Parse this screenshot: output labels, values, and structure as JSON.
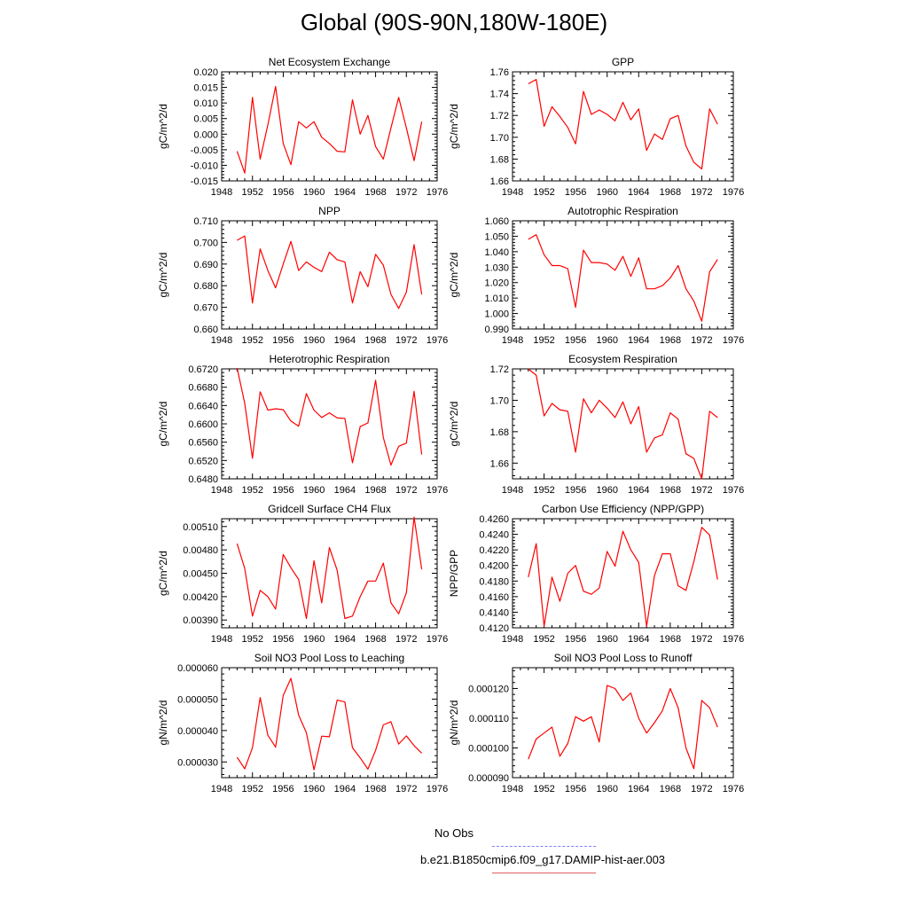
{
  "page": {
    "title": "Global (90S-90N,180W-180E)"
  },
  "legend": {
    "entries": [
      {
        "label": "No Obs",
        "color": "#7f7fff",
        "style": "dashed"
      },
      {
        "label": "b.e21.B1850cmip6.f09_g17.DAMIP-hist-aer.003",
        "color": "#e06060",
        "style": "solid"
      }
    ]
  },
  "chart_data": [
    {
      "type": "line",
      "title": "Net Ecosystem Exchange",
      "ylabel": "gC/m^2/d",
      "xlim": [
        1948,
        1976
      ],
      "ylim": [
        -0.015,
        0.02
      ],
      "xticks": [
        1948,
        1952,
        1956,
        1960,
        1964,
        1968,
        1972,
        1976
      ],
      "yticks": [
        -0.015,
        -0.01,
        -0.005,
        0.0,
        0.005,
        0.01,
        0.015,
        0.02
      ],
      "ytick_labels": [
        "-0.015",
        "-0.010",
        "-0.005",
        "0.000",
        "0.005",
        "0.010",
        "0.015",
        "0.020"
      ],
      "series": [
        {
          "color": "#ff0000",
          "x": [
            1950,
            1951,
            1952,
            1953,
            1954,
            1955,
            1956,
            1957,
            1958,
            1959,
            1960,
            1961,
            1962,
            1963,
            1964,
            1965,
            1966,
            1967,
            1968,
            1969,
            1970,
            1971,
            1972,
            1973,
            1974
          ],
          "y": [
            -0.0055,
            -0.0125,
            0.0118,
            -0.008,
            0.003,
            0.0153,
            -0.003,
            -0.0098,
            0.004,
            0.002,
            0.004,
            -0.001,
            -0.003,
            -0.0055,
            -0.0057,
            0.011,
            0.0,
            0.006,
            -0.004,
            -0.008,
            0.002,
            0.0118,
            0.002,
            -0.0085,
            0.004
          ]
        }
      ]
    },
    {
      "type": "line",
      "title": "GPP",
      "ylabel": "gC/m^2/d",
      "xlim": [
        1948,
        1976
      ],
      "ylim": [
        1.66,
        1.76
      ],
      "xticks": [
        1948,
        1952,
        1956,
        1960,
        1964,
        1968,
        1972,
        1976
      ],
      "yticks": [
        1.66,
        1.68,
        1.7,
        1.72,
        1.74,
        1.76
      ],
      "ytick_labels": [
        "1.66",
        "1.68",
        "1.70",
        "1.72",
        "1.74",
        "1.76"
      ],
      "series": [
        {
          "color": "#ff0000",
          "x": [
            1950,
            1951,
            1952,
            1953,
            1954,
            1955,
            1956,
            1957,
            1958,
            1959,
            1960,
            1961,
            1962,
            1963,
            1964,
            1965,
            1966,
            1967,
            1968,
            1969,
            1970,
            1971,
            1972,
            1973,
            1974
          ],
          "y": [
            1.749,
            1.753,
            1.71,
            1.728,
            1.719,
            1.709,
            1.694,
            1.742,
            1.721,
            1.725,
            1.721,
            1.715,
            1.732,
            1.716,
            1.726,
            1.688,
            1.703,
            1.698,
            1.717,
            1.72,
            1.692,
            1.677,
            1.671,
            1.726,
            1.712
          ]
        }
      ]
    },
    {
      "type": "line",
      "title": "NPP",
      "ylabel": "gC/m^2/d",
      "xlim": [
        1948,
        1976
      ],
      "ylim": [
        0.66,
        0.71
      ],
      "xticks": [
        1948,
        1952,
        1956,
        1960,
        1964,
        1968,
        1972,
        1976
      ],
      "yticks": [
        0.66,
        0.67,
        0.68,
        0.69,
        0.7,
        0.71
      ],
      "ytick_labels": [
        "0.660",
        "0.670",
        "0.680",
        "0.690",
        "0.700",
        "0.710"
      ],
      "series": [
        {
          "color": "#ff0000",
          "x": [
            1950,
            1951,
            1952,
            1953,
            1954,
            1955,
            1956,
            1957,
            1958,
            1959,
            1960,
            1961,
            1962,
            1963,
            1964,
            1965,
            1966,
            1967,
            1968,
            1969,
            1970,
            1971,
            1972,
            1973,
            1974
          ],
          "y": [
            0.701,
            0.703,
            0.672,
            0.697,
            0.687,
            0.679,
            0.69,
            0.7005,
            0.687,
            0.691,
            0.6885,
            0.6865,
            0.6955,
            0.692,
            0.691,
            0.672,
            0.6865,
            0.6795,
            0.6945,
            0.6895,
            0.676,
            0.6695,
            0.677,
            0.699,
            0.676
          ]
        }
      ]
    },
    {
      "type": "line",
      "title": "Autotrophic Respiration",
      "ylabel": "gC/m^2/d",
      "xlim": [
        1948,
        1976
      ],
      "ylim": [
        0.99,
        1.06
      ],
      "xticks": [
        1948,
        1952,
        1956,
        1960,
        1964,
        1968,
        1972,
        1976
      ],
      "yticks": [
        0.99,
        1.0,
        1.01,
        1.02,
        1.03,
        1.04,
        1.05,
        1.06
      ],
      "ytick_labels": [
        "0.990",
        "1.000",
        "1.010",
        "1.020",
        "1.030",
        "1.040",
        "1.050",
        "1.060"
      ],
      "series": [
        {
          "color": "#ff0000",
          "x": [
            1950,
            1951,
            1952,
            1953,
            1954,
            1955,
            1956,
            1957,
            1958,
            1959,
            1960,
            1961,
            1962,
            1963,
            1964,
            1965,
            1966,
            1967,
            1968,
            1969,
            1970,
            1971,
            1972,
            1973,
            1974
          ],
          "y": [
            1.048,
            1.051,
            1.038,
            1.031,
            1.031,
            1.029,
            1.004,
            1.041,
            1.033,
            1.033,
            1.032,
            1.028,
            1.037,
            1.024,
            1.036,
            1.016,
            1.016,
            1.018,
            1.023,
            1.031,
            1.016,
            1.008,
            0.995,
            1.027,
            1.035
          ]
        }
      ]
    },
    {
      "type": "line",
      "title": "Heterotrophic Respiration",
      "ylabel": "gC/m^2/d",
      "xlim": [
        1948,
        1976
      ],
      "ylim": [
        0.648,
        0.672
      ],
      "xticks": [
        1948,
        1952,
        1956,
        1960,
        1964,
        1968,
        1972,
        1976
      ],
      "yticks": [
        0.648,
        0.652,
        0.656,
        0.66,
        0.664,
        0.668,
        0.672
      ],
      "ytick_labels": [
        "0.6480",
        "0.6520",
        "0.6560",
        "0.6600",
        "0.6640",
        "0.6680",
        "0.6720"
      ],
      "series": [
        {
          "color": "#ff0000",
          "x": [
            1950,
            1951,
            1952,
            1953,
            1954,
            1955,
            1956,
            1957,
            1958,
            1959,
            1960,
            1961,
            1962,
            1963,
            1964,
            1965,
            1966,
            1967,
            1968,
            1969,
            1970,
            1971,
            1972,
            1973,
            1974
          ],
          "y": [
            0.6722,
            0.6645,
            0.6525,
            0.667,
            0.663,
            0.6633,
            0.6631,
            0.6606,
            0.6595,
            0.6666,
            0.663,
            0.6614,
            0.6624,
            0.6613,
            0.6612,
            0.6515,
            0.6594,
            0.6602,
            0.6695,
            0.657,
            0.651,
            0.6551,
            0.6558,
            0.6671,
            0.6533
          ]
        }
      ]
    },
    {
      "type": "line",
      "title": "Ecosystem Respiration",
      "ylabel": "gC/m^2/d",
      "xlim": [
        1948,
        1976
      ],
      "ylim": [
        1.65,
        1.72
      ],
      "xticks": [
        1948,
        1952,
        1956,
        1960,
        1964,
        1968,
        1972,
        1976
      ],
      "yticks": [
        1.66,
        1.68,
        1.7,
        1.72
      ],
      "ytick_labels": [
        "1.66",
        "1.68",
        "1.70",
        "1.72"
      ],
      "series": [
        {
          "color": "#ff0000",
          "x": [
            1950,
            1951,
            1952,
            1953,
            1954,
            1955,
            1956,
            1957,
            1958,
            1959,
            1960,
            1961,
            1962,
            1963,
            1964,
            1965,
            1966,
            1967,
            1968,
            1969,
            1970,
            1971,
            1972,
            1973,
            1974
          ],
          "y": [
            1.72,
            1.716,
            1.69,
            1.698,
            1.694,
            1.693,
            1.667,
            1.701,
            1.692,
            1.7,
            1.695,
            1.689,
            1.699,
            1.685,
            1.696,
            1.667,
            1.676,
            1.678,
            1.692,
            1.688,
            1.666,
            1.663,
            1.65,
            1.693,
            1.689
          ]
        }
      ]
    },
    {
      "type": "line",
      "title": "Gridcell Surface CH4 Flux",
      "ylabel": "gC/m^2/d",
      "xlim": [
        1948,
        1976
      ],
      "ylim": [
        0.0038,
        0.0052
      ],
      "xticks": [
        1948,
        1952,
        1956,
        1960,
        1964,
        1968,
        1972,
        1976
      ],
      "yticks": [
        0.0039,
        0.0042,
        0.0045,
        0.0048,
        0.0051
      ],
      "ytick_labels": [
        "0.00390",
        "0.00420",
        "0.00450",
        "0.00480",
        "0.00510"
      ],
      "series": [
        {
          "color": "#ff0000",
          "x": [
            1950,
            1951,
            1952,
            1953,
            1954,
            1955,
            1956,
            1957,
            1958,
            1959,
            1960,
            1961,
            1962,
            1963,
            1964,
            1965,
            1966,
            1967,
            1968,
            1969,
            1970,
            1971,
            1972,
            1973,
            1974
          ],
          "y": [
            0.00488,
            0.00456,
            0.00395,
            0.00428,
            0.0042,
            0.00404,
            0.00474,
            0.00457,
            0.00442,
            0.00392,
            0.00466,
            0.00412,
            0.00483,
            0.00454,
            0.00392,
            0.00395,
            0.0042,
            0.0044,
            0.0044,
            0.00463,
            0.00412,
            0.00398,
            0.00425,
            0.00522,
            0.00455
          ]
        }
      ]
    },
    {
      "type": "line",
      "title": "Carbon Use Efficiency (NPP/GPP)",
      "ylabel": "NPP/GPP",
      "xlim": [
        1948,
        1976
      ],
      "ylim": [
        0.412,
        0.426
      ],
      "xticks": [
        1948,
        1952,
        1956,
        1960,
        1964,
        1968,
        1972,
        1976
      ],
      "yticks": [
        0.412,
        0.414,
        0.416,
        0.418,
        0.42,
        0.422,
        0.424,
        0.426
      ],
      "ytick_labels": [
        "0.4120",
        "0.4140",
        "0.4160",
        "0.4180",
        "0.4200",
        "0.4220",
        "0.4240",
        "0.4260"
      ],
      "series": [
        {
          "color": "#ff0000",
          "x": [
            1950,
            1951,
            1952,
            1953,
            1954,
            1955,
            1956,
            1957,
            1958,
            1959,
            1960,
            1961,
            1962,
            1963,
            1964,
            1965,
            1966,
            1967,
            1968,
            1969,
            1970,
            1971,
            1972,
            1973,
            1974
          ],
          "y": [
            0.4185,
            0.4228,
            0.4122,
            0.4185,
            0.4154,
            0.419,
            0.42,
            0.4167,
            0.4163,
            0.4171,
            0.4218,
            0.4199,
            0.4244,
            0.422,
            0.4204,
            0.4122,
            0.4187,
            0.4215,
            0.4215,
            0.4174,
            0.4168,
            0.4205,
            0.4249,
            0.4239,
            0.4182
          ]
        }
      ]
    },
    {
      "type": "line",
      "title": "Soil NO3 Pool Loss to Leaching",
      "ylabel": "gN/m^2/d",
      "xlim": [
        1948,
        1976
      ],
      "ylim": [
        2.5e-05,
        6e-05
      ],
      "xticks": [
        1948,
        1952,
        1956,
        1960,
        1964,
        1968,
        1972,
        1976
      ],
      "yticks": [
        3e-05,
        4e-05,
        5e-05,
        6e-05
      ],
      "ytick_labels": [
        "0.000030",
        "0.000040",
        "0.000050",
        "0.000060"
      ],
      "series": [
        {
          "color": "#ff0000",
          "x": [
            1950,
            1951,
            1952,
            1953,
            1954,
            1955,
            1956,
            1957,
            1958,
            1959,
            1960,
            1961,
            1962,
            1963,
            1964,
            1965,
            1966,
            1967,
            1968,
            1969,
            1970,
            1971,
            1972,
            1973,
            1974
          ],
          "y": [
            3.15e-05,
            2.78e-05,
            3.45e-05,
            5.05e-05,
            3.85e-05,
            3.47e-05,
            5.12e-05,
            5.66e-05,
            4.49e-05,
            3.93e-05,
            2.75e-05,
            3.82e-05,
            3.8e-05,
            4.97e-05,
            4.91e-05,
            3.45e-05,
            3.13e-05,
            2.77e-05,
            3.37e-05,
            4.18e-05,
            4.28e-05,
            3.57e-05,
            3.83e-05,
            3.52e-05,
            3.28e-05
          ]
        }
      ]
    },
    {
      "type": "line",
      "title": "Soil NO3 Pool Loss to Runoff",
      "ylabel": "gN/m^2/d",
      "xlim": [
        1948,
        1976
      ],
      "ylim": [
        9e-05,
        0.000127
      ],
      "xticks": [
        1948,
        1952,
        1956,
        1960,
        1964,
        1968,
        1972,
        1976
      ],
      "yticks": [
        9e-05,
        0.0001,
        0.00011,
        0.00012
      ],
      "ytick_labels": [
        "0.000090",
        "0.000100",
        "0.000110",
        "0.000120"
      ],
      "series": [
        {
          "color": "#ff0000",
          "x": [
            1950,
            1951,
            1952,
            1953,
            1954,
            1955,
            1956,
            1957,
            1958,
            1959,
            1960,
            1961,
            1962,
            1963,
            1964,
            1965,
            1966,
            1967,
            1968,
            1969,
            1970,
            1971,
            1972,
            1973,
            1974
          ],
          "y": [
            9.62e-05,
            0.000103,
            0.000105,
            0.000107,
            9.72e-05,
            0.0001015,
            0.0001105,
            0.000109,
            0.0001105,
            0.000102,
            0.000121,
            0.00012,
            0.000116,
            0.0001185,
            0.00011,
            0.000105,
            0.0001085,
            0.0001125,
            0.00012,
            0.0001135,
            0.0001,
            9.3e-05,
            0.000116,
            0.0001135,
            0.000107
          ]
        }
      ]
    }
  ]
}
